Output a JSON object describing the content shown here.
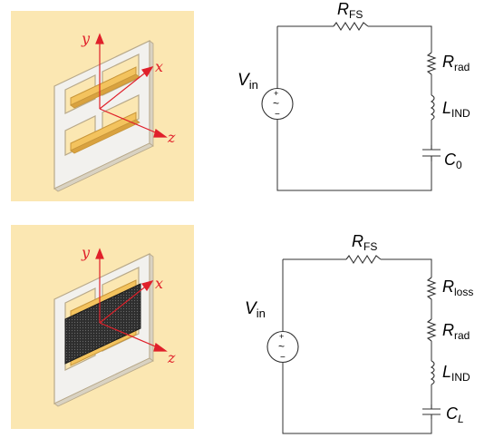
{
  "colors": {
    "panel_bg": "#fbe7b2",
    "plate_fill": "#f2f1ee",
    "plate_edge": "#b8a98a",
    "bar_fill": "#f3c35e",
    "bar_edge": "#c8963a",
    "axis": "#e0202a",
    "absorber": "#2e2e2e",
    "wire": "#303030"
  },
  "top_panel": {
    "axes": {
      "x": "x",
      "y": "y",
      "z": "z"
    }
  },
  "bottom_panel": {
    "axes": {
      "x": "x",
      "y": "y",
      "z": "z"
    }
  },
  "top_circuit": {
    "source": {
      "main": "V",
      "sub": "in"
    },
    "components": [
      {
        "type": "resistor",
        "main": "R",
        "sub": "FS"
      },
      {
        "type": "resistor",
        "main": "R",
        "sub": "rad"
      },
      {
        "type": "inductor",
        "main": "L",
        "sub": "IND"
      },
      {
        "type": "capacitor",
        "main": "C",
        "sub": "0"
      }
    ]
  },
  "bottom_circuit": {
    "source": {
      "main": "V",
      "sub": "in"
    },
    "components": [
      {
        "type": "resistor",
        "main": "R",
        "sub": "FS"
      },
      {
        "type": "resistor",
        "main": "R",
        "sub": "loss"
      },
      {
        "type": "resistor",
        "main": "R",
        "sub": "rad"
      },
      {
        "type": "inductor",
        "main": "L",
        "sub": "IND"
      },
      {
        "type": "capacitor",
        "main": "C",
        "sub": "L"
      }
    ]
  }
}
